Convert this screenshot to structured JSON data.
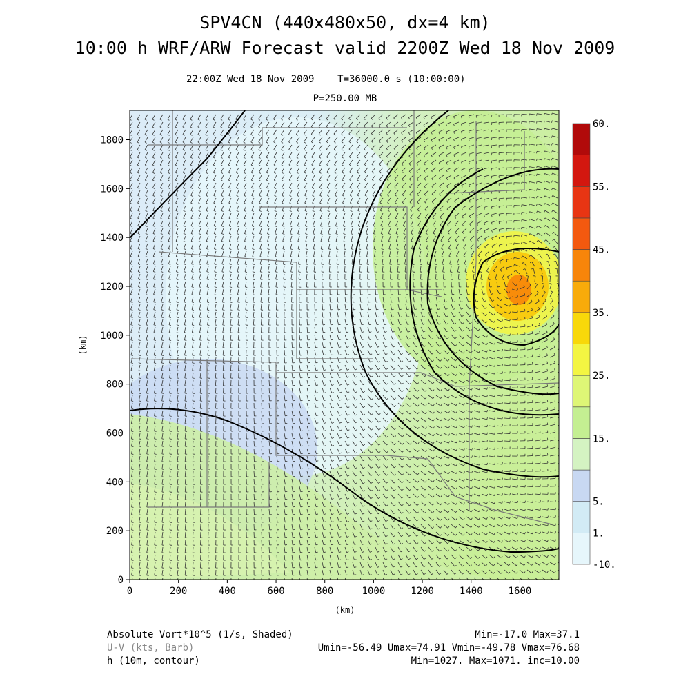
{
  "header": {
    "title_line1": "SPV4CN (440x480x50, dx=4 km)",
    "title_line2": "10:00 h WRF/ARW Forecast valid 2200Z Wed 18 Nov 2009",
    "subtitle_time": "22:00Z Wed 18 Nov 2009    T=36000.0 s (10:00:00)",
    "subtitle_level": "P=250.00 MB"
  },
  "footer": {
    "field1_label": "Absolute Vort*10^5 (1/s, Shaded)",
    "field1_stats": "Min=-17.0 Max=37.1",
    "field2_label": "U-V (kts, Barb)",
    "field2_stats": "Umin=-56.49 Umax=74.91 Vmin=-49.78 Vmax=76.68",
    "field3_label": "h (10m, contour)",
    "field3_stats": "Min=1027. Max=1071. inc=10.00"
  },
  "chart_data": {
    "type": "heatmap",
    "title": "SPV4CN (440x480x50, dx=4 km)",
    "xlabel": "(km)",
    "ylabel": "(km)",
    "xlim": [
      0,
      1760
    ],
    "ylim": [
      0,
      1920
    ],
    "x_ticks": [
      0,
      200,
      400,
      600,
      800,
      1000,
      1200,
      1400,
      1600
    ],
    "y_ticks": [
      0,
      200,
      400,
      600,
      800,
      1000,
      1200,
      1400,
      1600,
      1800
    ],
    "colorbar": {
      "levels": [
        -10,
        1,
        5,
        10,
        15,
        20,
        25,
        30,
        35,
        40,
        45,
        50,
        55,
        60
      ],
      "colors": [
        "#e6f6fb",
        "#d2ebf5",
        "#c8d8f2",
        "#d4f3c2",
        "#c4ef92",
        "#def676",
        "#f3f542",
        "#f8d80a",
        "#f8ab0a",
        "#f7850a",
        "#f3590f",
        "#e83513",
        "#d3170f",
        "#b10a0a"
      ],
      "tick_labels": [
        "60.",
        "55.",
        "45.",
        "35.",
        "25.",
        "15.",
        "5.",
        "1.",
        "-10."
      ]
    },
    "contour_field": "h (10m)",
    "contour_levels": [
      1030,
      1040,
      1050,
      1060,
      1070
    ],
    "vorticity_min": -17.0,
    "vorticity_max": 37.1,
    "u_min": -56.49,
    "u_max": 74.91,
    "v_min": -49.78,
    "v_max": 76.68,
    "h_min": 1027,
    "h_max": 1071,
    "h_inc": 10.0,
    "low_center_km": [
      1580,
      1230
    ]
  }
}
